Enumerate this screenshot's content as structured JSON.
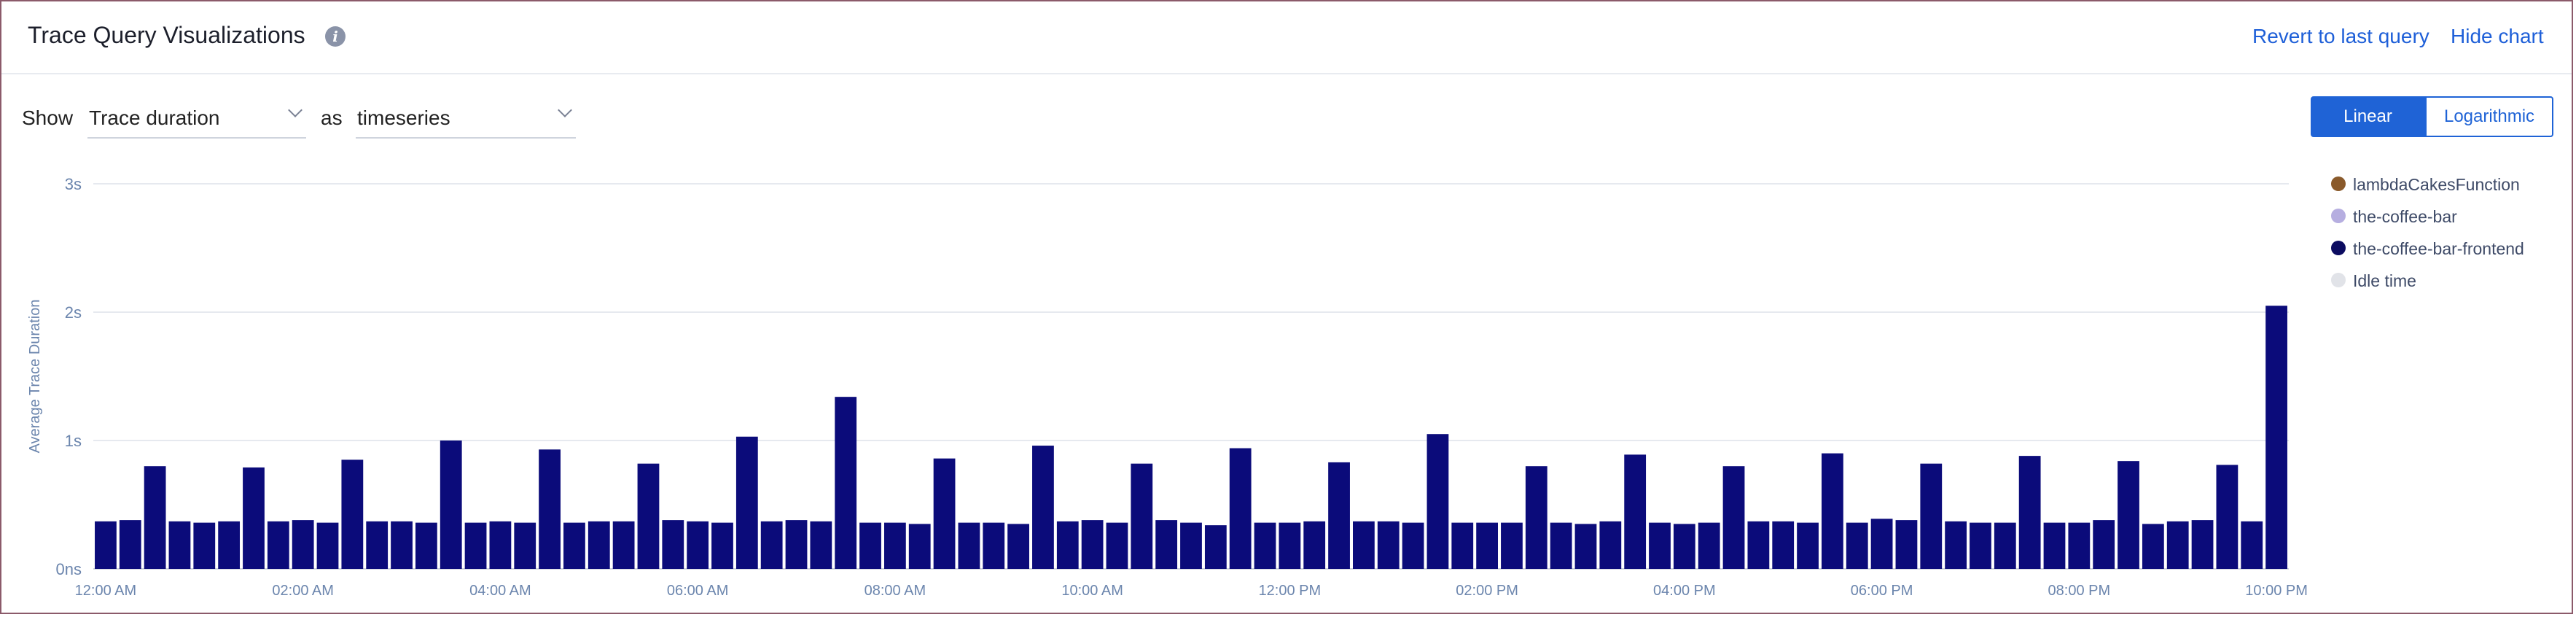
{
  "header": {
    "title": "Trace Query Visualizations",
    "info_icon": "info-icon",
    "revert_link": "Revert to last query",
    "hide_link": "Hide chart"
  },
  "controls": {
    "show_label": "Show",
    "metric_select": "Trace duration",
    "as_label": "as",
    "view_select": "timeseries",
    "scale_linear": "Linear",
    "scale_log": "Logarithmic",
    "active_scale": "Linear"
  },
  "colors": {
    "accent": "#1f63d6",
    "bar": "#0b0b7a",
    "axis_text": "#6b85ad",
    "grid": "#e6e9ef"
  },
  "legend": [
    {
      "label": "lambdaCakesFunction",
      "color": "#8a5a2b"
    },
    {
      "label": "the-coffee-bar",
      "color": "#b6aee0"
    },
    {
      "label": "the-coffee-bar-frontend",
      "color": "#0b0b60"
    },
    {
      "label": "Idle time",
      "color": "#e1e3e8"
    }
  ],
  "chart_data": {
    "type": "bar",
    "ylabel": "Average Trace Duration",
    "yticks": [
      "0ns",
      "1s",
      "2s",
      "3s"
    ],
    "ylim": [
      0,
      3
    ],
    "xticks": [
      "12:00 AM",
      "02:00 AM",
      "04:00 AM",
      "06:00 AM",
      "08:00 AM",
      "10:00 AM",
      "12:00 PM",
      "02:00 PM",
      "04:00 PM",
      "06:00 PM",
      "08:00 PM",
      "10:00 PM"
    ],
    "series": [
      {
        "name": "the-coffee-bar-frontend",
        "values": [
          0.37,
          0.38,
          0.8,
          0.37,
          0.36,
          0.37,
          0.79,
          0.37,
          0.38,
          0.36,
          0.85,
          0.37,
          0.37,
          0.36,
          1.0,
          0.36,
          0.37,
          0.36,
          0.93,
          0.36,
          0.37,
          0.37,
          0.82,
          0.38,
          0.37,
          0.36,
          1.03,
          0.37,
          0.38,
          0.37,
          1.34,
          0.36,
          0.36,
          0.35,
          0.86,
          0.36,
          0.36,
          0.35,
          0.96,
          0.37,
          0.38,
          0.36,
          0.82,
          0.38,
          0.36,
          0.34,
          0.94,
          0.36,
          0.36,
          0.37,
          0.83,
          0.37,
          0.37,
          0.36,
          1.05,
          0.36,
          0.36,
          0.36,
          0.8,
          0.36,
          0.35,
          0.37,
          0.89,
          0.36,
          0.35,
          0.36,
          0.8,
          0.37,
          0.37,
          0.36,
          0.9,
          0.36,
          0.39,
          0.38,
          0.82,
          0.37,
          0.36,
          0.36,
          0.88,
          0.36,
          0.36,
          0.38,
          0.84,
          0.35,
          0.37,
          0.38,
          0.81,
          0.37,
          2.05
        ]
      }
    ]
  }
}
